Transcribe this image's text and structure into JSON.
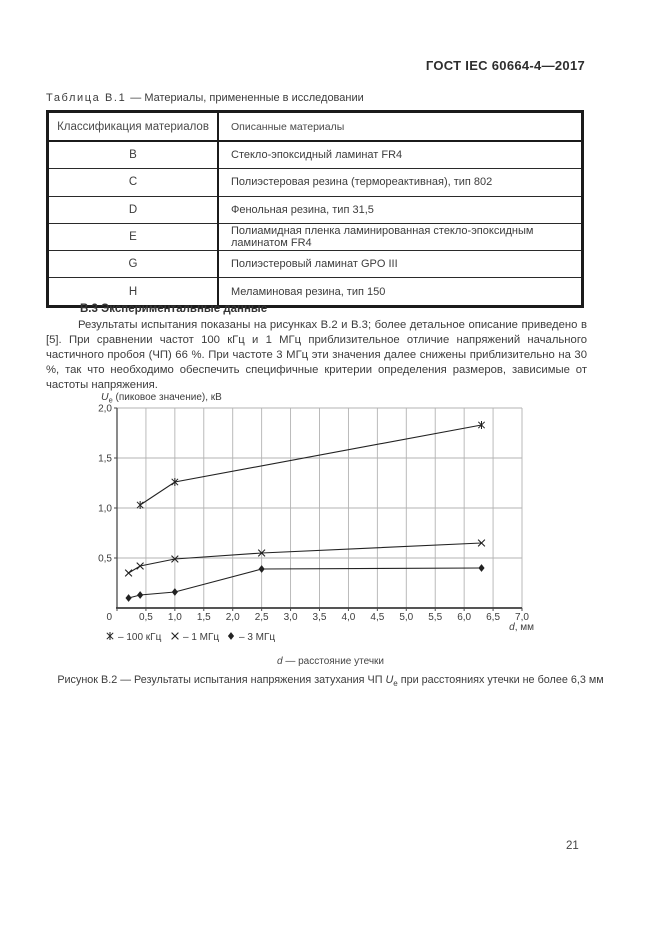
{
  "page": {
    "header_title": "ГОСТ IEC 60664-4—2017",
    "page_number": "21"
  },
  "table": {
    "caption_label": "Таблица В.1",
    "caption_rest": "— Материалы, примененные в исследовании",
    "columns": [
      "Классификация материалов",
      "Описанные материалы"
    ],
    "rows": [
      [
        "B",
        "Стекло-эпоксидный ламинат FR4"
      ],
      [
        "C",
        "Полиэстеровая резина (термореактивная), тип 802"
      ],
      [
        "D",
        "Фенольная резина, тип 31,5"
      ],
      [
        "E",
        "Полиамидная пленка ламинированная стекло-эпоксидным ламинатом FR4"
      ],
      [
        "G",
        "Полиэстеровый ламинат GPO III"
      ],
      [
        "H",
        "Меламиновая резина, тип 150"
      ]
    ]
  },
  "section": {
    "heading": "В.3 Экспериментальные данные",
    "paragraph": "Результаты испытания показаны на рисунках В.2 и В.3; более детальное описание приведено в [5]. При сравнении частот 100 кГц и 1 МГц приблизительное отличие напряжений начального частичного пробоя (ЧП) 66 %. При частоте 3 МГц эти значения далее снижены приблизительно на 30 %, так что необходимо обеспечить специфичные критерии определения размеров, зависимые от частоты напряжения."
  },
  "figure": {
    "axis_note_symbol": "d",
    "axis_note_rest": " — расстояние утечки",
    "caption_before": "Рисунок В.2 — Результаты испытания напряжения затухания ЧП ",
    "caption_symbol": "U",
    "caption_sub": "e",
    "caption_after": " при расстояниях утечки не более 6,3 мм"
  },
  "chart_data": {
    "type": "line",
    "title": "",
    "y_title": {
      "symbol": "U",
      "sub": "e",
      "rest": " (пиковое значение), кВ"
    },
    "x_title": {
      "symbol": "d",
      "rest": ", мм"
    },
    "xlim": [
      0,
      7.0
    ],
    "ylim": [
      0,
      2.0
    ],
    "grid": true,
    "legend_position": "bottom-left",
    "x_ticks": [
      {
        "v": 0.0,
        "label": "0"
      },
      {
        "v": 0.5,
        "label": "0,5"
      },
      {
        "v": 1.0,
        "label": "1,0"
      },
      {
        "v": 1.5,
        "label": "1,5"
      },
      {
        "v": 2.0,
        "label": "2,0"
      },
      {
        "v": 2.5,
        "label": "2,5"
      },
      {
        "v": 3.0,
        "label": "3,0"
      },
      {
        "v": 3.5,
        "label": "3,5"
      },
      {
        "v": 4.0,
        "label": "4,0"
      },
      {
        "v": 4.5,
        "label": "4,5"
      },
      {
        "v": 5.0,
        "label": "5,0"
      },
      {
        "v": 5.5,
        "label": "5,5"
      },
      {
        "v": 6.0,
        "label": "6,0"
      },
      {
        "v": 6.5,
        "label": "6,5"
      },
      {
        "v": 7.0,
        "label": "7,0"
      }
    ],
    "y_ticks": [
      {
        "v": 0.5,
        "label": "0,5"
      },
      {
        "v": 1.0,
        "label": "1,0"
      },
      {
        "v": 1.5,
        "label": "1,5"
      },
      {
        "v": 2.0,
        "label": "2,0"
      }
    ],
    "series": [
      {
        "name": "100 кГц",
        "marker": "asterisk",
        "points": [
          [
            0.4,
            1.03
          ],
          [
            1.0,
            1.26
          ],
          [
            6.3,
            1.83
          ]
        ]
      },
      {
        "name": "1 МГц",
        "marker": "x",
        "points": [
          [
            0.2,
            0.35
          ],
          [
            0.4,
            0.42
          ],
          [
            1.0,
            0.49
          ],
          [
            2.5,
            0.55
          ],
          [
            6.3,
            0.65
          ]
        ]
      },
      {
        "name": "3 МГц",
        "marker": "diamond",
        "points": [
          [
            0.2,
            0.1
          ],
          [
            0.4,
            0.13
          ],
          [
            1.0,
            0.16
          ],
          [
            2.5,
            0.39
          ],
          [
            6.3,
            0.4
          ]
        ]
      }
    ],
    "line_color": "#222222",
    "grid_color": "#b3b3b3",
    "axis_color": "#4a4a4a"
  }
}
